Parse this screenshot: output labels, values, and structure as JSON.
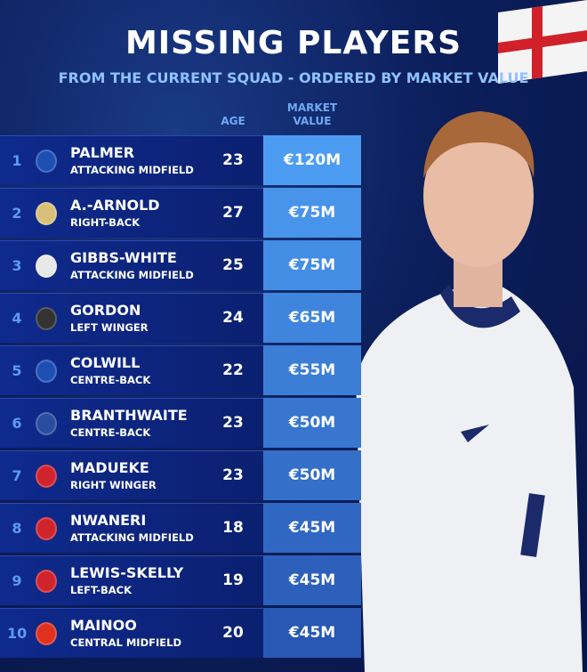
{
  "title": "MISSING PLAYERS",
  "subtitle": "FROM THE CURRENT SQUAD - ORDERED BY MARKET VALUE",
  "headers": {
    "age": "AGE",
    "value": "MARKET VALUE"
  },
  "rows": [
    {
      "rank": "1",
      "name": "PALMER",
      "position": "ATTACKING MIDFIELD",
      "age": "23",
      "value": "€120M",
      "club": "chelsea-crest-icon",
      "color": "#1d4fb3"
    },
    {
      "rank": "2",
      "name": "A.-ARNOLD",
      "position": "RIGHT-BACK",
      "age": "27",
      "value": "€75M",
      "club": "real-madrid-crest-icon",
      "color": "#d8c07a"
    },
    {
      "rank": "3",
      "name": "GIBBS-WHITE",
      "position": "ATTACKING MIDFIELD",
      "age": "25",
      "value": "€75M",
      "club": "nottingham-forest-crest-icon",
      "color": "#e8e8e8"
    },
    {
      "rank": "4",
      "name": "GORDON",
      "position": "LEFT WINGER",
      "age": "24",
      "value": "€65M",
      "club": "newcastle-crest-icon",
      "color": "#333333"
    },
    {
      "rank": "5",
      "name": "COLWILL",
      "position": "CENTRE-BACK",
      "age": "22",
      "value": "€55M",
      "club": "chelsea-crest-icon",
      "color": "#1d4fb3"
    },
    {
      "rank": "6",
      "name": "BRANTHWAITE",
      "position": "CENTRE-BACK",
      "age": "23",
      "value": "€50M",
      "club": "everton-crest-icon",
      "color": "#2a4c9c"
    },
    {
      "rank": "7",
      "name": "MADUEKE",
      "position": "RIGHT WINGER",
      "age": "23",
      "value": "€50M",
      "club": "arsenal-crest-icon",
      "color": "#d0242c"
    },
    {
      "rank": "8",
      "name": "NWANERI",
      "position": "ATTACKING MIDFIELD",
      "age": "18",
      "value": "€45M",
      "club": "arsenal-crest-icon",
      "color": "#d0242c"
    },
    {
      "rank": "9",
      "name": "LEWIS-SKELLY",
      "position": "LEFT-BACK",
      "age": "19",
      "value": "€45M",
      "club": "arsenal-crest-icon",
      "color": "#d0242c"
    },
    {
      "rank": "10",
      "name": "MAINOO",
      "position": "CENTRAL MIDFIELD",
      "age": "20",
      "value": "€45M",
      "club": "man-utd-crest-icon",
      "color": "#e0301e"
    }
  ]
}
